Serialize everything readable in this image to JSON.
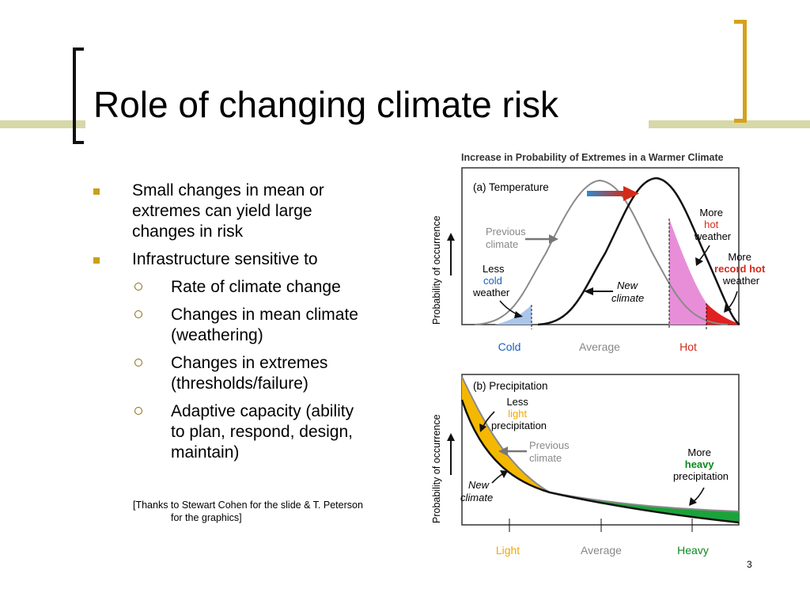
{
  "slide": {
    "title": "Role of changing climate risk",
    "page_number": "3"
  },
  "bullets": [
    {
      "text": "Small changes in mean or extremes can yield large changes in risk",
      "lines": [
        "Small changes in mean or",
        "extremes can yield large",
        "changes in risk"
      ]
    },
    {
      "text": "Infrastructure sensitive to",
      "lines": [
        "Infrastructure sensitive to"
      ],
      "sub": [
        {
          "lines": [
            "Rate of climate change"
          ]
        },
        {
          "lines": [
            "Changes in mean climate",
            "(weathering)"
          ]
        },
        {
          "lines": [
            "Changes in extremes",
            "(thresholds/failure)"
          ]
        },
        {
          "lines": [
            "Adaptive capacity (ability",
            "to plan, respond, design,",
            "maintain)"
          ]
        }
      ]
    }
  ],
  "thanks": {
    "line1": "[Thanks to Stewart Cohen for the slide & T. Peterson",
    "line2": "for the graphics]"
  },
  "figure": {
    "title": "Increase in Probability of Extremes in a Warmer Climate",
    "ylabel": "Probability of occurrence",
    "panel_a": {
      "label": "(a) Temperature",
      "previous": [
        "Previous",
        "climate"
      ],
      "new": [
        "New",
        "climate"
      ],
      "less_cold": [
        "Less",
        "cold",
        "weather"
      ],
      "more_hot": [
        "More",
        "hot",
        "weather"
      ],
      "more_record_hot": [
        "More",
        "record hot",
        "weather"
      ],
      "x_labels": [
        "Cold",
        "Average",
        "Hot"
      ]
    },
    "panel_b": {
      "label": "(b) Precipitation",
      "less_light": [
        "Less",
        "light",
        "precipitation"
      ],
      "previous": [
        "Previous",
        "climate"
      ],
      "new": [
        "New",
        "climate"
      ],
      "more_heavy": [
        "More",
        "heavy",
        "precipitation"
      ],
      "x_labels": [
        "Light",
        "Average",
        "Heavy"
      ]
    },
    "colors": {
      "cold": "#1a5fbf",
      "hot": "#d42a1a",
      "record_hot": "#d42a1a",
      "light": "#f2a900",
      "heavy": "#0a8a1a",
      "hot_fill": "#e88ed8",
      "record_fill": "#e32020",
      "cold_fill": "#a9c6ea",
      "light_fill": "#f5b800",
      "heavy_fill": "#1aa33a"
    }
  }
}
